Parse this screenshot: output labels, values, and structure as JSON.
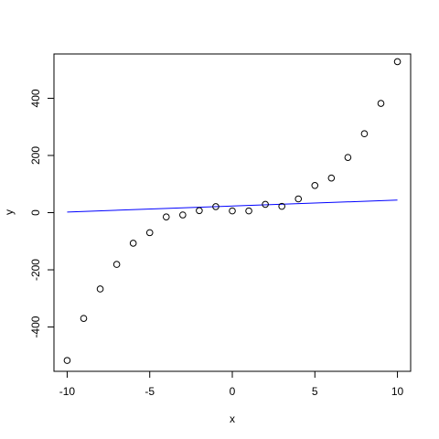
{
  "chart_data": {
    "type": "scatter",
    "title": "",
    "xlabel": "x",
    "ylabel": "y",
    "xlim": [
      -10.8,
      10.8
    ],
    "ylim": [
      -555,
      555
    ],
    "xticks": [
      -10,
      -5,
      0,
      5,
      10
    ],
    "xtick_labels": [
      "-10",
      "-5",
      "0",
      "5",
      "10"
    ],
    "yticks": [
      -400,
      -200,
      0,
      200,
      400
    ],
    "ytick_labels": [
      "-400",
      "-200",
      "0",
      "200",
      "400"
    ],
    "grid": false,
    "points": {
      "x": [
        -10,
        -9,
        -8,
        -7,
        -6,
        -5,
        -4,
        -3,
        -2,
        -1,
        0,
        1,
        2,
        3,
        4,
        5,
        6,
        7,
        8,
        9,
        10
      ],
      "y": [
        -517,
        -370,
        -267,
        -181,
        -107,
        -70,
        -15,
        -8,
        7,
        21,
        6,
        6,
        29,
        22,
        48,
        95,
        121,
        193,
        276,
        382,
        528
      ]
    },
    "fit_line": {
      "x": [
        -10,
        10
      ],
      "y": [
        2,
        44
      ]
    },
    "colors": {
      "points": "#000000",
      "fit_line": "#0000ff",
      "axes": "#000000"
    }
  }
}
